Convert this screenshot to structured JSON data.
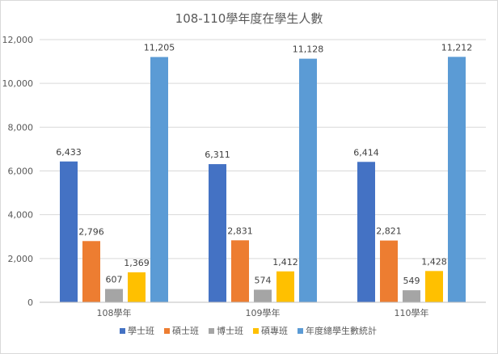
{
  "chart_data": {
    "type": "bar",
    "title": "108-110學年度在學生人數",
    "categories": [
      "108學年",
      "109學年",
      "110學年"
    ],
    "series": [
      {
        "name": "學士班",
        "color": "#4472C4",
        "values": [
          6433,
          6311,
          6414
        ],
        "labels": [
          "6,433",
          "6,311",
          "6,414"
        ]
      },
      {
        "name": "碩士班",
        "color": "#ED7D31",
        "values": [
          2796,
          2831,
          2821
        ],
        "labels": [
          "2,796",
          "2,831",
          "2,821"
        ]
      },
      {
        "name": "博士班",
        "color": "#A5A5A5",
        "values": [
          607,
          574,
          549
        ],
        "labels": [
          "607",
          "574",
          "549"
        ]
      },
      {
        "name": "碩專班",
        "color": "#FFC000",
        "values": [
          1369,
          1412,
          1428
        ],
        "labels": [
          "1,369",
          "1,412",
          "1,428"
        ]
      },
      {
        "name": "年度總學生數統計",
        "color": "#5B9BD5",
        "values": [
          11205,
          11128,
          11212
        ],
        "labels": [
          "11,205",
          "11,128",
          "11,212"
        ]
      }
    ],
    "yticks": [
      0,
      2000,
      4000,
      6000,
      8000,
      10000,
      12000
    ],
    "ytick_labels": [
      "0",
      "2,000",
      "4,000",
      "6,000",
      "8,000",
      "10,000",
      "12,000"
    ],
    "ylim": [
      0,
      12000
    ],
    "grid": true,
    "legend": "bottom"
  }
}
